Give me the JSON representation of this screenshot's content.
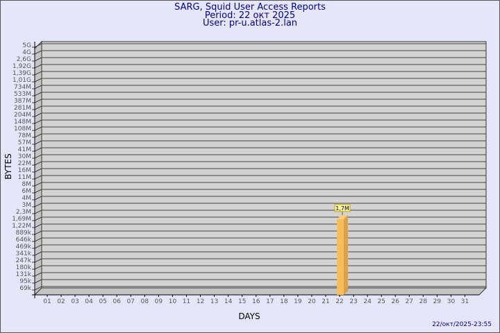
{
  "header": {
    "title": "SARG, Squid User Access Reports",
    "period": "Period: 22 окт 2025",
    "user": "User: pr-u.atlas-2.lan"
  },
  "footer": {
    "timestamp": "22/окт/2025-23:55"
  },
  "colors": {
    "background": "#e6e6fa",
    "plot": "#d3d3d3",
    "bar": "#f5bd5e",
    "title": "#00008b"
  },
  "chart_data": {
    "type": "bar",
    "xlabel": "DAYS",
    "ylabel": "BYTES",
    "y_scale": "log",
    "grid": true,
    "categories": [
      "01",
      "02",
      "03",
      "04",
      "05",
      "06",
      "07",
      "08",
      "09",
      "10",
      "11",
      "12",
      "13",
      "14",
      "15",
      "16",
      "17",
      "18",
      "19",
      "20",
      "21",
      "22",
      "23",
      "24",
      "25",
      "26",
      "27",
      "28",
      "29",
      "30",
      "31"
    ],
    "y_tick_labels": [
      "5G",
      "4G",
      "2,6G",
      "1,92G",
      "1,39G",
      "1,01G",
      "734M",
      "533M",
      "387M",
      "281M",
      "204M",
      "148M",
      "108M",
      "78M",
      "57M",
      "41M",
      "30M",
      "22M",
      "16M",
      "11M",
      "8M",
      "6M",
      "4M",
      "3M",
      "2,3M",
      "1,69M",
      "1,22M",
      "889k",
      "646k",
      "469k",
      "341k",
      "247k",
      "180k",
      "131k",
      "95k",
      "69k"
    ],
    "y_tick_values": [
      5000000000.0,
      4000000000.0,
      2600000000.0,
      1920000000.0,
      1390000000.0,
      1010000000.0,
      734000000.0,
      533000000.0,
      387000000.0,
      281000000.0,
      204000000.0,
      148000000.0,
      108000000.0,
      78000000.0,
      57000000.0,
      41000000.0,
      30000000.0,
      22000000.0,
      16000000.0,
      11000000.0,
      8000000.0,
      6000000.0,
      4000000.0,
      3000000.0,
      2300000.0,
      1690000.0,
      1220000.0,
      889000.0,
      646000.0,
      469000.0,
      341000.0,
      247000.0,
      180000.0,
      131000.0,
      95000.0,
      69000.0
    ],
    "series": [
      {
        "points": [
          {
            "day": "22",
            "value": 1700000,
            "label": "1,7M"
          }
        ]
      }
    ]
  }
}
